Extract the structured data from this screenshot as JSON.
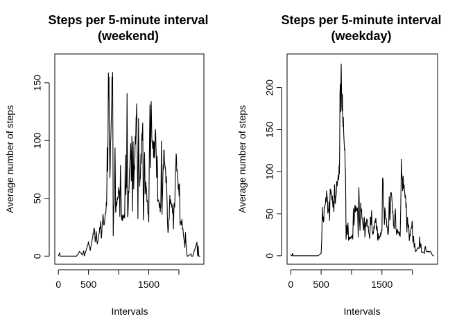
{
  "chart_data": [
    {
      "type": "line",
      "title_line1": "Steps per 5-minute interval",
      "title_line2": "(weekend)",
      "xlabel": "Intervals",
      "ylabel": "Average number of steps",
      "xlim": [
        -60,
        2415
      ],
      "ylim": [
        -7,
        175
      ],
      "xticks": [
        0,
        500,
        1500
      ],
      "xtick_labels": [
        "0",
        "500",
        "1500"
      ],
      "xtick_marks": [
        0,
        500,
        1000,
        1500,
        2000
      ],
      "yticks": [
        0,
        50,
        100,
        150
      ],
      "ytick_labels": [
        "0",
        "50",
        "100",
        "150"
      ],
      "grid": false,
      "legend": "none",
      "line_color": "#000000",
      "series": [
        {
          "x": [
            0,
            20,
            30,
            50,
            100,
            200,
            300,
            330,
            350,
            400,
            420,
            430,
            500,
            530,
            545,
            600,
            610,
            630,
            645,
            700,
            715,
            730,
            745,
            755,
            800,
            810,
            820,
            830,
            835,
            840,
            845,
            850,
            855,
            900,
            910,
            915,
            930,
            940,
            950,
            1000,
            1010,
            1020,
            1030,
            1040,
            1050,
            1100,
            1110,
            1120,
            1130,
            1140,
            1150,
            1200,
            1210,
            1220,
            1230,
            1240,
            1250,
            1300,
            1310,
            1320,
            1330,
            1340,
            1350,
            1400,
            1410,
            1420,
            1430,
            1440,
            1450,
            1500,
            1510,
            1520,
            1530,
            1540,
            1550,
            1600,
            1610,
            1620,
            1630,
            1640,
            1650,
            1700,
            1710,
            1720,
            1730,
            1740,
            1750,
            1800,
            1810,
            1820,
            1830,
            1840,
            1850,
            1900,
            1910,
            1920,
            1930,
            1940,
            1950,
            2000,
            2010,
            2020,
            2030,
            2040,
            2050,
            2100,
            2110,
            2120,
            2130,
            2140,
            2150,
            2200,
            2210,
            2230,
            2300,
            2310,
            2320,
            2330,
            2340,
            2355
          ],
          "y": [
            0,
            3,
            0,
            0,
            0,
            0,
            0,
            2,
            4,
            1,
            5,
            0,
            12,
            5,
            10,
            25,
            12,
            20,
            10,
            28,
            15,
            30,
            35,
            25,
            45,
            88,
            75,
            160,
            130,
            163,
            100,
            85,
            70,
            167,
            18,
            35,
            50,
            95,
            40,
            55,
            60,
            35,
            77,
            50,
            32,
            35,
            80,
            55,
            60,
            142,
            32,
            97,
            70,
            95,
            40,
            100,
            60,
            130,
            85,
            35,
            110,
            80,
            60,
            115,
            30,
            55,
            98,
            50,
            65,
            30,
            90,
            125,
            75,
            145,
            100,
            90,
            110,
            100,
            65,
            85,
            50,
            40,
            100,
            35,
            60,
            75,
            90,
            60,
            30,
            20,
            28,
            35,
            50,
            40,
            25,
            45,
            42,
            65,
            88,
            55,
            60,
            28,
            30,
            28,
            30,
            8,
            20,
            10,
            3,
            0,
            0,
            2,
            0,
            0,
            12,
            0,
            10,
            0,
            0,
            0
          ],
          "step": 5
        }
      ]
    },
    {
      "type": "line",
      "title_line1": "Steps per 5-minute interval",
      "title_line2": "(weekday)",
      "xlabel": "Intervals",
      "ylabel": "Average number of steps",
      "xlim": [
        -60,
        2415
      ],
      "ylim": [
        -10,
        240
      ],
      "xticks": [
        0,
        500,
        1500
      ],
      "xtick_labels": [
        "0",
        "500",
        "1500"
      ],
      "xtick_marks": [
        0,
        500,
        1000,
        1500,
        2000
      ],
      "yticks": [
        0,
        50,
        100,
        150,
        200
      ],
      "ytick_labels": [
        "0",
        "50",
        "100",
        "150",
        "200"
      ],
      "grid": false,
      "legend": "none",
      "line_color": "#000000",
      "series": [
        {
          "x": [
            0,
            10,
            20,
            30,
            40,
            50,
            100,
            200,
            300,
            400,
            450,
            500,
            510,
            520,
            530,
            540,
            550,
            600,
            610,
            620,
            630,
            640,
            650,
            700,
            710,
            720,
            730,
            740,
            750,
            800,
            810,
            815,
            820,
            830,
            835,
            840,
            845,
            850,
            855,
            900,
            910,
            920,
            930,
            940,
            950,
            1000,
            1010,
            1020,
            1030,
            1040,
            1050,
            1100,
            1110,
            1120,
            1130,
            1140,
            1150,
            1200,
            1210,
            1220,
            1230,
            1240,
            1250,
            1300,
            1310,
            1320,
            1330,
            1340,
            1350,
            1400,
            1410,
            1420,
            1430,
            1440,
            1450,
            1500,
            1510,
            1520,
            1530,
            1540,
            1550,
            1600,
            1610,
            1620,
            1630,
            1640,
            1650,
            1700,
            1710,
            1720,
            1730,
            1740,
            1750,
            1800,
            1810,
            1820,
            1830,
            1840,
            1850,
            1900,
            1910,
            1920,
            1930,
            1940,
            1950,
            2000,
            2010,
            2020,
            2030,
            2040,
            2050,
            2100,
            2110,
            2120,
            2130,
            2140,
            2150,
            2200,
            2210,
            2230,
            2300,
            2320,
            2340,
            2355
          ],
          "y": [
            2,
            0,
            0,
            3,
            0,
            0,
            0,
            0,
            0,
            0,
            0,
            3,
            20,
            55,
            45,
            40,
            55,
            75,
            50,
            55,
            60,
            45,
            80,
            60,
            55,
            85,
            65,
            65,
            80,
            100,
            180,
            205,
            175,
            230,
            190,
            185,
            180,
            175,
            170,
            105,
            20,
            35,
            25,
            40,
            20,
            22,
            25,
            20,
            55,
            35,
            55,
            55,
            20,
            85,
            45,
            30,
            60,
            30,
            50,
            20,
            40,
            35,
            45,
            20,
            45,
            40,
            50,
            30,
            25,
            45,
            30,
            35,
            20,
            25,
            20,
            30,
            95,
            85,
            60,
            40,
            55,
            25,
            30,
            75,
            40,
            60,
            80,
            30,
            45,
            55,
            35,
            25,
            30,
            25,
            60,
            115,
            90,
            85,
            90,
            60,
            30,
            45,
            35,
            35,
            20,
            40,
            15,
            25,
            10,
            15,
            5,
            10,
            8,
            22,
            10,
            15,
            5,
            3,
            12,
            5,
            5,
            2,
            0,
            0
          ],
          "step": 5
        }
      ]
    }
  ]
}
